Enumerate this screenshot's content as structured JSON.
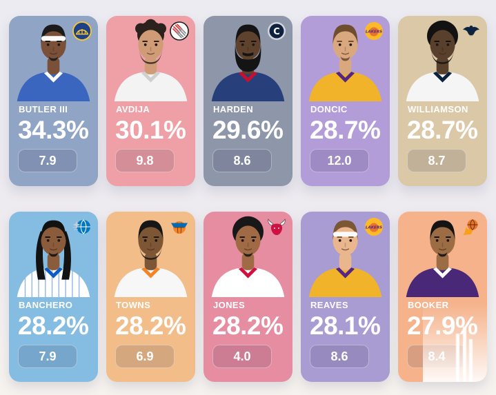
{
  "page": {
    "background_top": "#ecebf1",
    "background_bottom": "#f6f3ee",
    "badge_overlay": "rgba(25,25,60,0.13)",
    "badge_border": "rgba(255,255,255,0.38)"
  },
  "cards": [
    {
      "name": "BUTLER III",
      "pct": "34.3%",
      "stat": "7.9",
      "team": "warriors",
      "card_color": "#90a4c5",
      "avatar": {
        "skin": "#7a5138",
        "hair": "#1b1b1b",
        "hair_type": "short",
        "headband": true,
        "beard": "goatee",
        "jersey": "#3b66c0",
        "trim": "#ffffff"
      }
    },
    {
      "name": "AVDIJA",
      "pct": "30.1%",
      "stat": "9.8",
      "team": "blazers",
      "card_color": "#efa0a6",
      "avatar": {
        "skin": "#cf9c77",
        "hair": "#2b211d",
        "hair_type": "curly",
        "headband": false,
        "beard": "chin",
        "jersey": "#f3f3f3",
        "trim": "#cfcfcf"
      }
    },
    {
      "name": "HARDEN",
      "pct": "29.6%",
      "stat": "8.6",
      "team": "clippers",
      "card_color": "#8e96aa",
      "avatar": {
        "skin": "#5f422e",
        "hair": "#141414",
        "hair_type": "short",
        "headband": false,
        "beard": "full",
        "jersey": "#27407c",
        "trim": "#c8102e"
      }
    },
    {
      "name": "DONCIC",
      "pct": "28.7%",
      "stat": "12.0",
      "team": "lakers",
      "card_color": "#b29dd8",
      "avatar": {
        "skin": "#d9a87f",
        "hair": "#6e4e2f",
        "hair_type": "short",
        "headband": false,
        "beard": "goatee",
        "jersey": "#f0b32a",
        "trim": "#552583"
      }
    },
    {
      "name": "WILLIAMSON",
      "pct": "28.7%",
      "stat": "8.7",
      "team": "pelicans",
      "card_color": "#dbc8a6",
      "avatar": {
        "skin": "#58402c",
        "hair": "#121212",
        "hair_type": "afro",
        "headband": false,
        "beard": "chin",
        "jersey": "#f5f5f5",
        "trim": "#0c2340"
      }
    },
    {
      "name": "BANCHERO",
      "pct": "28.2%",
      "stat": "7.9",
      "team": "magic",
      "card_color": "#85bce2",
      "avatar": {
        "skin": "#8a5c3b",
        "hair": "#121212",
        "hair_type": "dreads",
        "headband": false,
        "beard": "goatee",
        "jersey": "#ffffff",
        "trim": "#0b5cc4",
        "pinstripes": true
      }
    },
    {
      "name": "TOWNS",
      "pct": "28.2%",
      "stat": "6.9",
      "team": "knicks",
      "card_color": "#f2bd89",
      "avatar": {
        "skin": "#7d5636",
        "hair": "#161616",
        "hair_type": "short",
        "headband": false,
        "beard": "chin",
        "jersey": "#f7f7f7",
        "trim": "#f58426"
      }
    },
    {
      "name": "JONES",
      "pct": "28.2%",
      "stat": "4.0",
      "team": "bulls",
      "card_color": "#e78da1",
      "avatar": {
        "skin": "#a06b44",
        "hair": "#181818",
        "hair_type": "afro",
        "headband": false,
        "beard": "goatee",
        "jersey": "#ffffff",
        "trim": "#ce1141"
      }
    },
    {
      "name": "REAVES",
      "pct": "28.1%",
      "stat": "8.6",
      "team": "lakers",
      "card_color": "#a99cd2",
      "avatar": {
        "skin": "#e9b68d",
        "hair": "#7b5733",
        "hair_type": "short",
        "headband": true,
        "beard": "none",
        "jersey": "#f0b32a",
        "trim": "#552583"
      }
    },
    {
      "name": "BOOKER",
      "pct": "27.9%",
      "stat": "8.4",
      "team": "suns",
      "card_color": "#f5b28b",
      "white_fade_overlay": true,
      "avatar": {
        "skin": "#9c6c45",
        "hair": "#141414",
        "hair_type": "short",
        "headband": false,
        "beard": "goatee",
        "jersey": "#4a2878",
        "trim": "#ffffff"
      }
    }
  ],
  "teams": {
    "warriors": {
      "primary": "#1D428A",
      "secondary": "#FFC72C"
    },
    "blazers": {
      "primary": "#E03A3E",
      "secondary": "#8d9093"
    },
    "clippers": {
      "primary": "#0E2240",
      "secondary": "#d3d6dd"
    },
    "lakers": {
      "primary": "#FDB927",
      "secondary": "#552583",
      "ball": "#E8742C"
    },
    "pelicans": {
      "primary": "#0C2340",
      "secondary": "#B4975A"
    },
    "magic": {
      "primary": "#0077C0",
      "secondary": "#C4CED4"
    },
    "knicks": {
      "primary": "#F58426",
      "secondary": "#006BB6"
    },
    "bulls": {
      "primary": "#CE1141",
      "secondary": "#f5f5f5"
    },
    "suns": {
      "primary": "#E8742C",
      "secondary": "#F9A01B",
      "seam": "#5a2a00"
    }
  }
}
